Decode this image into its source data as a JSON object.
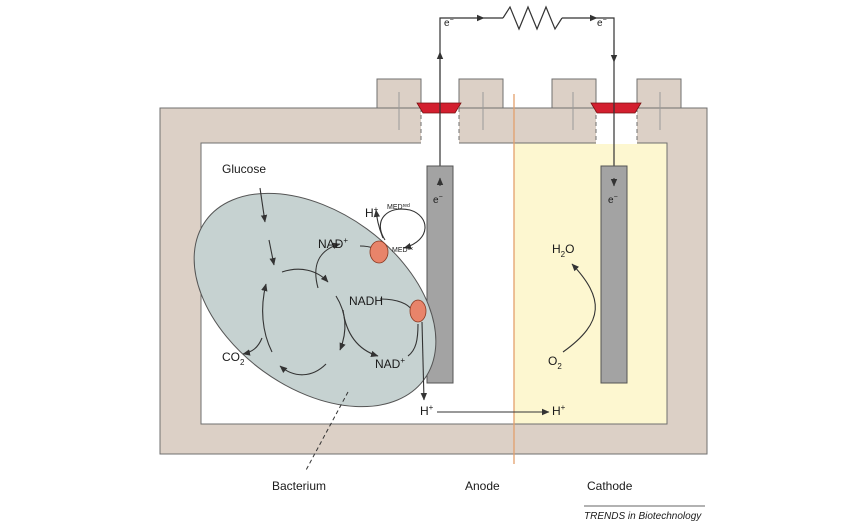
{
  "labels": {
    "glucose": "Glucose",
    "co2": "CO",
    "co2_sub": "2",
    "nad_plus_top": "NAD",
    "nad_plus_top_sup": "+",
    "nadh": "NADH",
    "nad_plus_bottom": "NAD",
    "nad_plus_bottom_sup": "+",
    "h_plus_top": "H",
    "h_plus_top_sup": "+",
    "med_red": "MED",
    "med_red_sup": "red",
    "med_ox": "MED",
    "med_ox_sup": "ox",
    "anode_electron": "e",
    "anode_electron_sup": "−",
    "cathode_electron": "e",
    "cathode_electron_sup": "−",
    "wire_electron_left": "e",
    "wire_electron_left_sup": "−",
    "wire_electron_right": "e",
    "wire_electron_right_sup": "−",
    "h2o": "H",
    "h2o_sub": "2",
    "h2o_end": "O",
    "o2": "O",
    "o2_sub": "2",
    "h_plus_anode": "H",
    "h_plus_anode_sup": "+",
    "h_plus_cathode": "H",
    "h_plus_cathode_sup": "+",
    "bacterium": "Bacterium",
    "anode": "Anode",
    "cathode": "Cathode"
  },
  "caption": "TRENDS in Biotechnology",
  "colors": {
    "chamber_wall": "#dcd0c6",
    "chamber_stroke": "#6f6f6f",
    "cathode_fill": "#fdf7d0",
    "electrode": "#a3a3a3",
    "bacterium": "#c6d2d1",
    "enzyme": "#e8846a",
    "seal": "#d31f2f",
    "membrane": "#e3a06c"
  }
}
